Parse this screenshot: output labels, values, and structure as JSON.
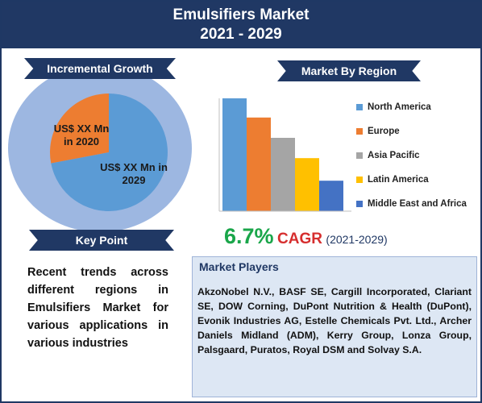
{
  "header": {
    "title": "Emulsifiers Market",
    "years": "2021 - 2029"
  },
  "incremental_growth": {
    "ribbon_label": "Incremental Growth",
    "slice_2020_label": "US$ XX Mn in 2020",
    "slice_2029_label": "US$ XX Mn in 2029"
  },
  "key_point": {
    "ribbon_label": "Key Point",
    "text": "Recent trends across different regions in Emulsifiers Market for various applications in various industries"
  },
  "region": {
    "ribbon_label": "Market By Region"
  },
  "cagr": {
    "value": "6.7%",
    "label": "CAGR",
    "period": "(2021-2029)"
  },
  "players": {
    "title": "Market Players",
    "text": "AkzoNobel N.V., BASF SE, Cargill Incorporated, Clariant SE, DOW Corning, DuPont Nutrition & Health (DuPont), Evonik Industries AG, Estelle Chemicals Pvt. Ltd., Archer Daniels Midland (ADM), Kerry Group, Lonza Group, Palsgaard, Puratos, Royal DSM and Solvay S.A."
  },
  "colors": {
    "navy": "#203864",
    "circle": "#9db7e1",
    "pie_2020": "#ed7d31",
    "pie_2029": "#5b9bd5",
    "cagr_green": "#1aa64a",
    "cagr_red": "#d62e2e"
  },
  "chart_data": [
    {
      "type": "pie",
      "title": "",
      "categories": [
        "US$ XX Mn in 2020",
        "US$ XX Mn in 2029"
      ],
      "values": [
        28,
        72
      ],
      "colors": [
        "#ed7d31",
        "#5b9bd5"
      ]
    },
    {
      "type": "bar",
      "title": "",
      "categories": [
        "North America",
        "Europe",
        "Asia Pacific",
        "Latin America",
        "Middle East and Africa"
      ],
      "values": [
        100,
        83,
        65,
        47,
        27
      ],
      "colors": [
        "#5b9bd5",
        "#ed7d31",
        "#a5a5a5",
        "#ffc000",
        "#4472c4"
      ],
      "ylim": [
        0,
        100
      ],
      "grid": false,
      "legend": "right"
    }
  ]
}
